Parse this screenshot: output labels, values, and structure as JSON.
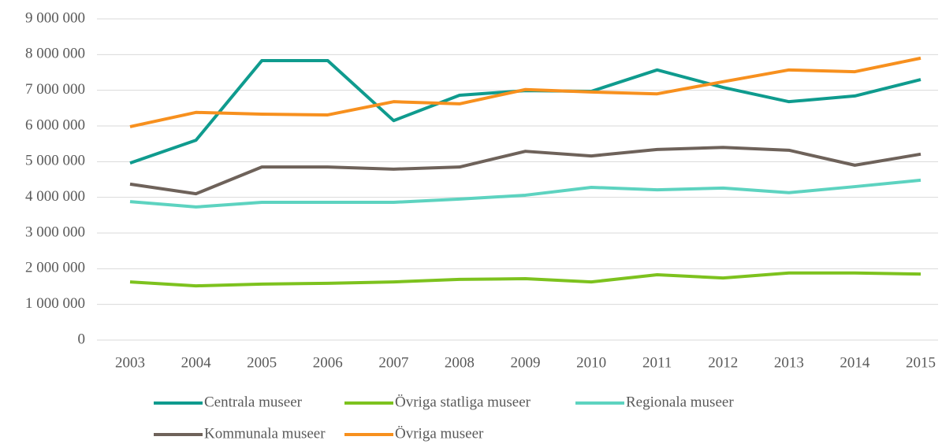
{
  "chart_data": {
    "type": "line",
    "x": [
      "2003",
      "2004",
      "2005",
      "2006",
      "2007",
      "2008",
      "2009",
      "2010",
      "2011",
      "2012",
      "2013",
      "2014",
      "2015"
    ],
    "series": [
      {
        "name": "Centrala museer",
        "color": "#0f9b8e",
        "values": [
          4960000,
          5600000,
          7830000,
          7830000,
          6150000,
          6860000,
          6990000,
          6970000,
          7570000,
          7080000,
          6680000,
          6840000,
          7300000
        ]
      },
      {
        "name": "Övriga statliga museer",
        "color": "#7dc21e",
        "values": [
          1630000,
          1520000,
          1570000,
          1590000,
          1630000,
          1700000,
          1720000,
          1630000,
          1830000,
          1740000,
          1880000,
          1880000,
          1850000
        ]
      },
      {
        "name": "Regionala museer",
        "color": "#5dd3c0",
        "values": [
          3880000,
          3730000,
          3860000,
          3860000,
          3860000,
          3950000,
          4060000,
          4280000,
          4210000,
          4260000,
          4130000,
          4300000,
          4480000
        ]
      },
      {
        "name": "Kommunala museer",
        "color": "#6e625a",
        "values": [
          4370000,
          4100000,
          4850000,
          4850000,
          4790000,
          4850000,
          5290000,
          5160000,
          5340000,
          5400000,
          5320000,
          4900000,
          5210000
        ]
      },
      {
        "name": "Övriga museer",
        "color": "#f7901e",
        "values": [
          5980000,
          6380000,
          6330000,
          6310000,
          6680000,
          6620000,
          7020000,
          6950000,
          6900000,
          7240000,
          7570000,
          7520000,
          7900000
        ]
      }
    ],
    "ylim": [
      0,
      9000000
    ],
    "yticks": [
      0,
      {
        "value": 1000000,
        "label": "1 000 000"
      },
      {
        "value": 2000000,
        "label": "2 000 000"
      },
      {
        "value": 3000000,
        "label": "3 000 000"
      },
      {
        "value": 4000000,
        "label": "4 000 000"
      },
      {
        "value": 5000000,
        "label": "5 000 000"
      },
      {
        "value": 6000000,
        "label": "6 000 000"
      },
      {
        "value": 7000000,
        "label": "7 000 000"
      },
      {
        "value": 8000000,
        "label": "8 000 000"
      },
      {
        "value": 9000000,
        "label": "9 000 000"
      }
    ],
    "grid": true,
    "legend": "bottom"
  }
}
